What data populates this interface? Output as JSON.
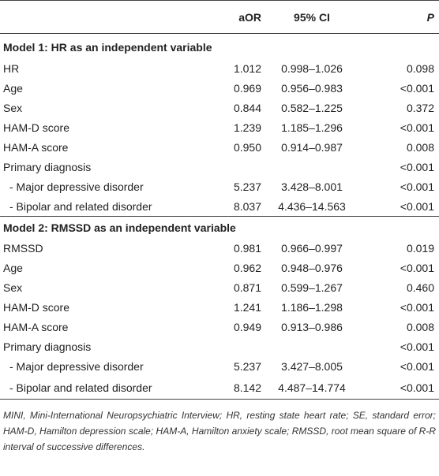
{
  "header": {
    "col_label": "",
    "col_aor": "aOR",
    "col_ci": "95% CI",
    "col_p": "P"
  },
  "model1": {
    "title": "Model 1: HR as an independent variable",
    "rows": [
      {
        "label": "HR",
        "aor": "1.012",
        "ci": "0.998–1.026",
        "p": "0.098"
      },
      {
        "label": "Age",
        "aor": "0.969",
        "ci": "0.956–0.983",
        "p": "<0.001"
      },
      {
        "label": "Sex",
        "aor": "0.844",
        "ci": "0.582–1.225",
        "p": "0.372"
      },
      {
        "label": "HAM-D score",
        "aor": "1.239",
        "ci": "1.185–1.296",
        "p": "<0.001"
      },
      {
        "label": "HAM-A score",
        "aor": "0.950",
        "ci": "0.914–0.987",
        "p": "0.008"
      },
      {
        "label": "Primary diagnosis",
        "aor": "",
        "ci": "",
        "p": "<0.001"
      },
      {
        "label": "- Major depressive disorder",
        "aor": "5.237",
        "ci": "3.428–8.001",
        "p": "<0.001"
      },
      {
        "label": "- Bipolar and related disorder",
        "aor": "8.037",
        "ci": "4.436–14.563",
        "p": "<0.001"
      }
    ]
  },
  "model2": {
    "title": "Model 2: RMSSD as an independent variable",
    "rows": [
      {
        "label": "RMSSD",
        "aor": "0.981",
        "ci": "0.966–0.997",
        "p": "0.019"
      },
      {
        "label": "Age",
        "aor": "0.962",
        "ci": "0.948–0.976",
        "p": "<0.001"
      },
      {
        "label": "Sex",
        "aor": "0.871",
        "ci": "0.599–1.267",
        "p": "0.460"
      },
      {
        "label": "HAM-D score",
        "aor": "1.241",
        "ci": "1.186–1.298",
        "p": "<0.001"
      },
      {
        "label": "HAM-A score",
        "aor": "0.949",
        "ci": "0.913–0.986",
        "p": "0.008"
      },
      {
        "label": "Primary diagnosis",
        "aor": "",
        "ci": "",
        "p": "<0.001"
      },
      {
        "label": "- Major depressive disorder",
        "aor": "5.237",
        "ci": "3.427–8.005",
        "p": "<0.001"
      },
      {
        "label": "- Bipolar and related disorder",
        "aor": "8.142",
        "ci": "4.487–14.774",
        "p": "<0.001"
      }
    ]
  },
  "footnote": "MINI, Mini-International Neuropsychiatric Interview; HR, resting state heart rate; SE, standard error; HAM-D, Hamilton depression scale; HAM-A, Hamilton anxiety scale; RMSSD, root mean square of R-R interval of successive differences."
}
